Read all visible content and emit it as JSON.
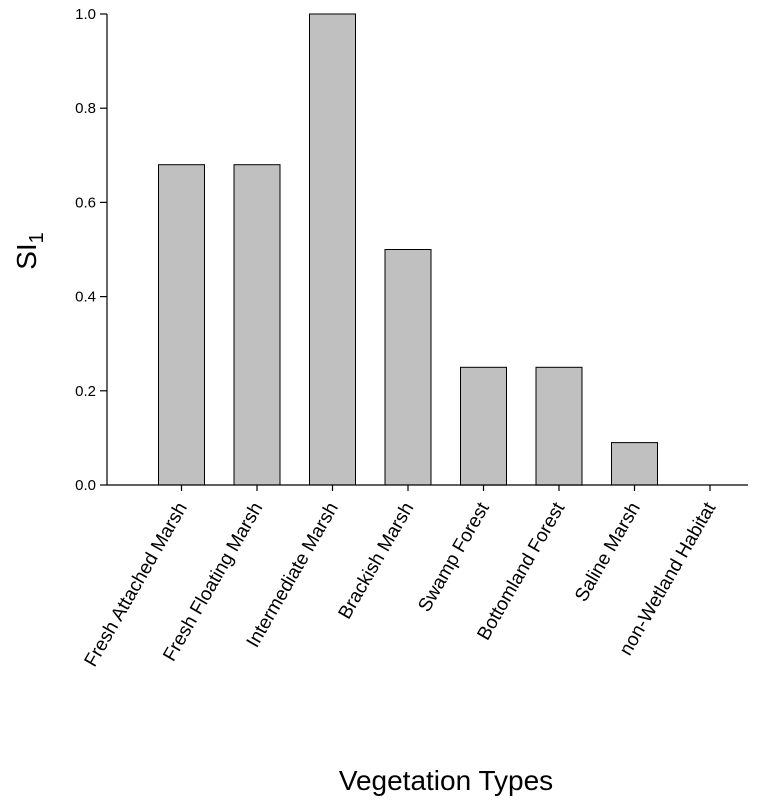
{
  "chart_data": {
    "type": "bar",
    "categories": [
      "Fresh Attached Marsh",
      "Fresh Floating Marsh",
      "Intermediate Marsh",
      "Brackish Marsh",
      "Swamp Forest",
      "Bottomland Forest",
      "Saline Marsh",
      "non-Wetland Habitat"
    ],
    "values": [
      0.68,
      0.68,
      1.0,
      0.5,
      0.25,
      0.25,
      0.09,
      0.0
    ],
    "xlabel": "Vegetation Types",
    "ylabel": {
      "main": "SI",
      "subscript": "1"
    },
    "ylim": [
      0,
      1.0
    ],
    "yticks": [
      "0.0",
      "0.2",
      "0.4",
      "0.6",
      "0.8",
      "1.0"
    ],
    "ytick_values": [
      0,
      0.2,
      0.4,
      0.6,
      0.8,
      1.0
    ],
    "grid": false,
    "bar_color": "#c0c0c0",
    "bar_edge_color": "#000000"
  }
}
